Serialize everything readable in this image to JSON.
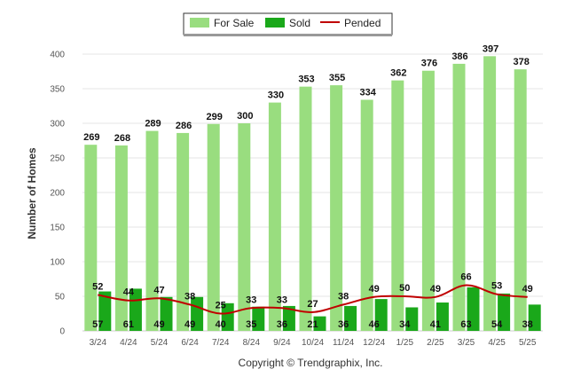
{
  "chart_data": {
    "type": "bar",
    "title": "",
    "xlabel": "",
    "ylabel": "Number of Homes",
    "ylim": [
      0,
      400
    ],
    "yticks": [
      0,
      50,
      100,
      150,
      200,
      250,
      300,
      350,
      400
    ],
    "grid": true,
    "legend_position": "top-center",
    "categories": [
      "3/24",
      "4/24",
      "5/24",
      "6/24",
      "7/24",
      "8/24",
      "9/24",
      "10/24",
      "11/24",
      "12/24",
      "1/25",
      "2/25",
      "3/25",
      "4/25",
      "5/25"
    ],
    "series": [
      {
        "name": "For Sale",
        "kind": "bar",
        "color": "#99dd7f",
        "values": [
          269,
          268,
          289,
          286,
          299,
          300,
          330,
          353,
          355,
          334,
          362,
          376,
          386,
          397,
          378
        ]
      },
      {
        "name": "Sold",
        "kind": "bar",
        "color": "#1aa81a",
        "values": [
          57,
          61,
          49,
          49,
          40,
          35,
          36,
          21,
          36,
          46,
          34,
          41,
          63,
          54,
          38
        ]
      },
      {
        "name": "Pended",
        "kind": "line",
        "color": "#c00000",
        "values": [
          52,
          44,
          47,
          38,
          25,
          33,
          33,
          27,
          38,
          49,
          50,
          49,
          66,
          53,
          49
        ]
      }
    ]
  },
  "footer": {
    "copyright": "Copyright © Trendgraphix, Inc."
  }
}
